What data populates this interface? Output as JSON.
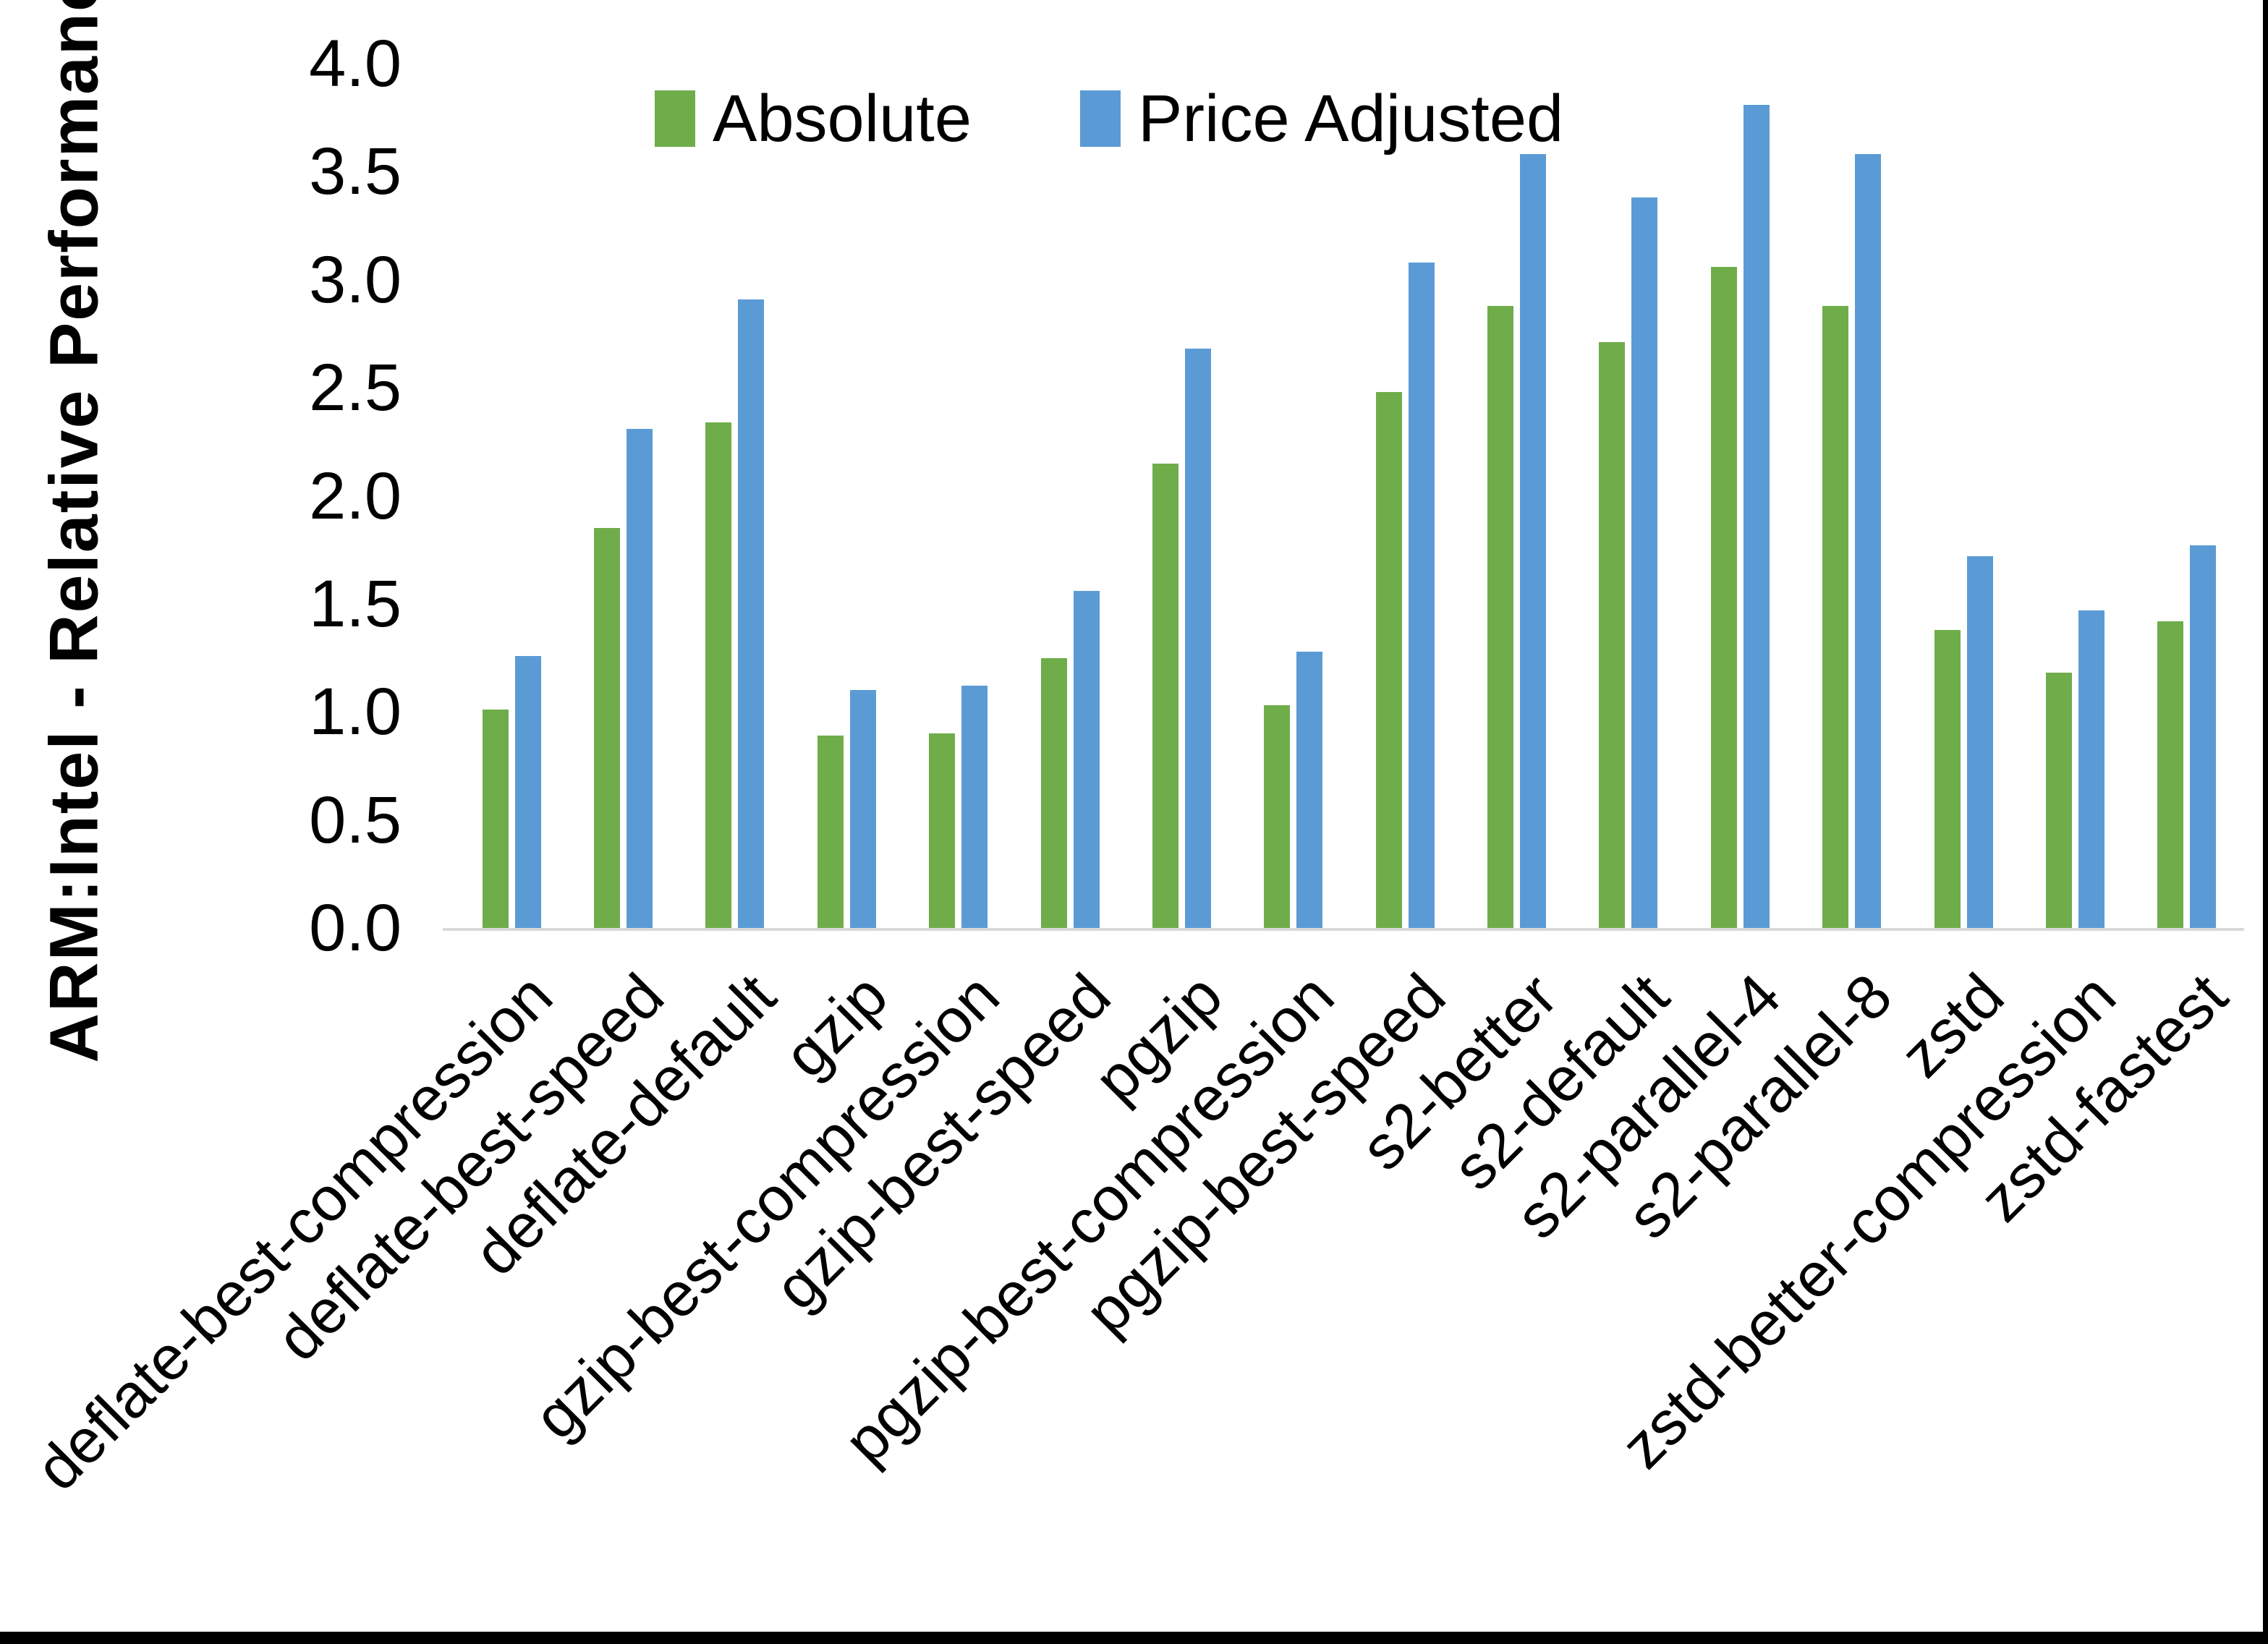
{
  "figure": {
    "background": "#ffffff",
    "frame_edge_color": "#000000",
    "axis_line_color": "#d9d9d9",
    "text_color": "#000000"
  },
  "chart_data": {
    "type": "bar",
    "title": "",
    "xlabel": "",
    "ylabel": "ARM:Intel - Relative Performance",
    "ylim": [
      0.0,
      4.0
    ],
    "ytick_step": 0.5,
    "ytick_labels": [
      "4.0",
      "3.5",
      "3.0",
      "2.5",
      "2.0",
      "1.5",
      "1.0",
      "0.5",
      "0.0"
    ],
    "grid": false,
    "legend_position": "top-inside-left",
    "categories": [
      "deflate-best-compression",
      "deflate-best-speed",
      "deflate-default",
      "gzip",
      "gzip-best-compression",
      "gzip-best-speed",
      "pgzip",
      "pgzip-best-compression",
      "pgzip-best-speed",
      "s2-better",
      "s2-default",
      "s2-parallel-4",
      "s2-parallel-8",
      "zstd",
      "zstd-better-compression",
      "zstd-fastest"
    ],
    "series": [
      {
        "name": "Absolute",
        "color": "#6fad4b",
        "values": [
          1.01,
          1.85,
          2.34,
          0.89,
          0.9,
          1.25,
          2.15,
          1.03,
          2.48,
          2.88,
          2.71,
          3.06,
          2.88,
          1.38,
          1.18,
          1.42
        ]
      },
      {
        "name": "Price Adjusted",
        "color": "#5b9bd5",
        "values": [
          1.26,
          2.31,
          2.91,
          1.1,
          1.12,
          1.56,
          2.68,
          1.28,
          3.08,
          3.58,
          3.38,
          3.81,
          3.58,
          1.72,
          1.47,
          1.77
        ]
      }
    ]
  }
}
